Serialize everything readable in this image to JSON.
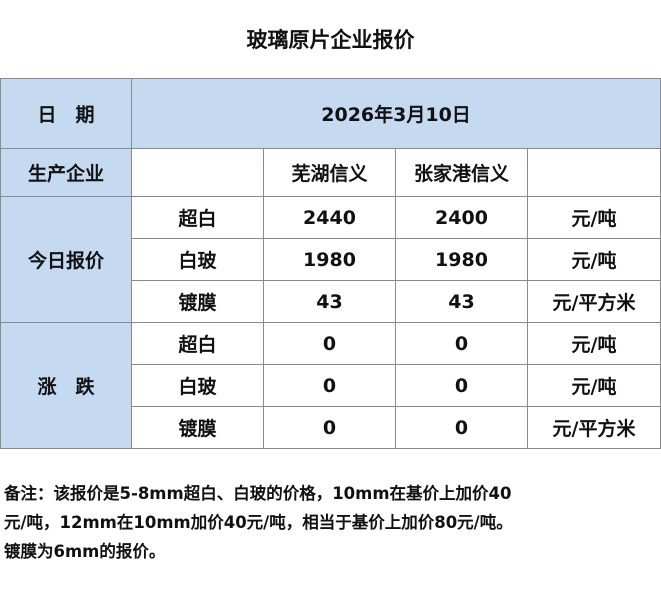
{
  "title": "玻璃原片企业报价",
  "table": {
    "date_label": "日　期",
    "date": "2026年3月10日",
    "header": [
      "生产企业",
      "芜湖信义",
      "张家港信义"
    ],
    "groups": [
      {
        "label": "今日报价",
        "rows": [
          {
            "product": "超白",
            "values": [
              2440,
              2400
            ],
            "unit": "元/吨"
          },
          {
            "product": "白玻",
            "values": [
              1980,
              1980
            ],
            "unit": "元/吨"
          },
          {
            "product": "镀膜",
            "values": [
              43,
              43
            ],
            "unit": "元/平方米"
          }
        ]
      },
      {
        "label": "涨　跌",
        "rows": [
          {
            "product": "超白",
            "values": [
              0,
              0
            ],
            "unit": "元/吨"
          },
          {
            "product": "白玻",
            "values": [
              0,
              0
            ],
            "unit": "元/吨"
          },
          {
            "product": "镀膜",
            "values": [
              0,
              0
            ],
            "unit": "元/平方米"
          }
        ]
      }
    ]
  },
  "note": [
    "备注：该报价是5-8mm超白、白玻的价格，10mm在基价上加价40",
    "元/吨，12mm在10mm加价40元/吨，相当于基价上加价80元/吨。",
    "镀膜为6mm的报价。"
  ]
}
